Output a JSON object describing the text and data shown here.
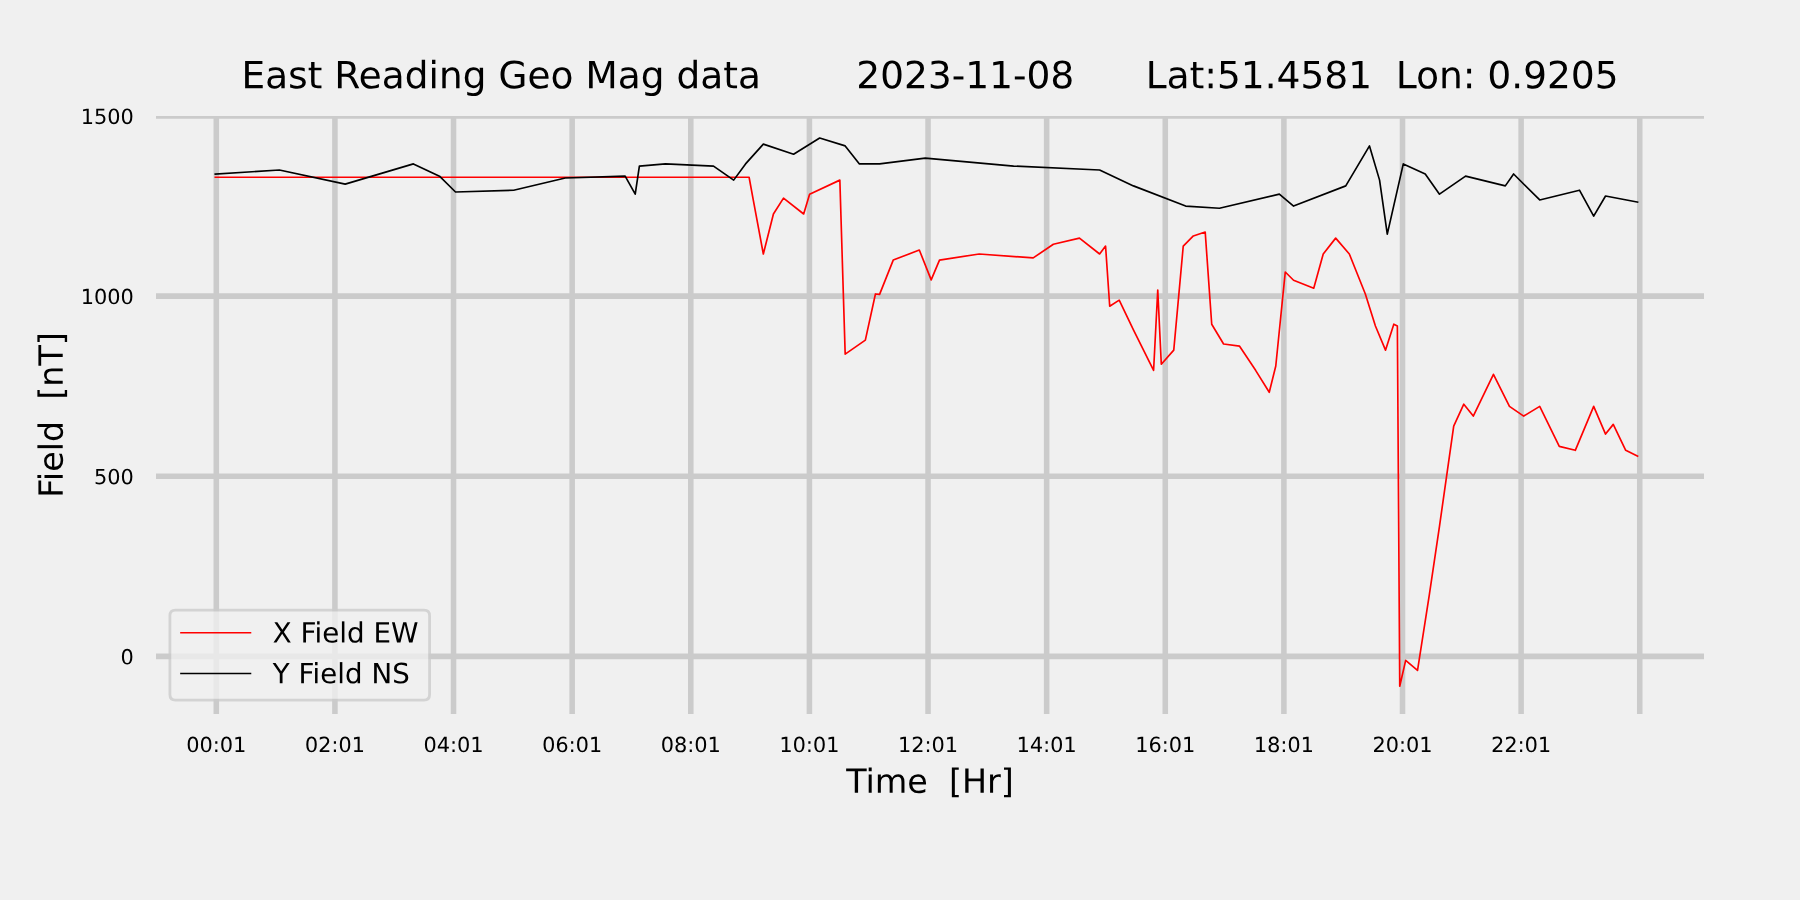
{
  "chart_data": {
    "type": "line",
    "title": "East Reading Geo Mag data        2023-11-08      Lat:51.4581  Lon: 0.9205",
    "xlabel": "Time  [Hr]",
    "ylabel": "Field  [nT]",
    "xlim": [
      -1,
      25.1
    ],
    "ylim": [
      -160,
      1500
    ],
    "xticks": [
      {
        "value": 0.0167,
        "label": "00:01"
      },
      {
        "value": 2.0167,
        "label": "02:01"
      },
      {
        "value": 4.0167,
        "label": "04:01"
      },
      {
        "value": 6.0167,
        "label": "06:01"
      },
      {
        "value": 8.0167,
        "label": "08:01"
      },
      {
        "value": 10.0167,
        "label": "10:01"
      },
      {
        "value": 12.0167,
        "label": "12:01"
      },
      {
        "value": 14.0167,
        "label": "14:01"
      },
      {
        "value": 16.0167,
        "label": "16:01"
      },
      {
        "value": 18.0167,
        "label": "18:01"
      },
      {
        "value": 20.0167,
        "label": "20:01"
      },
      {
        "value": 22.0167,
        "label": "22:01"
      },
      {
        "value": 24.0167,
        "label": null
      }
    ],
    "yticks": [
      0,
      500,
      1000,
      1500
    ],
    "grid": true,
    "legend": "bottom left",
    "marker": "none",
    "line_style": "solid",
    "series": [
      {
        "name": "X Field EW",
        "color": "#ff0000",
        "x": [
          0,
          9.0,
          9.07,
          9.24,
          9.41,
          9.58,
          9.92,
          10.02,
          10.53,
          10.62,
          10.96,
          11.13,
          11.2,
          11.43,
          11.87,
          12.07,
          12.21,
          12.88,
          13.79,
          14.13,
          14.57,
          14.91,
          15.01,
          15.08,
          15.24,
          15.48,
          15.82,
          15.89,
          15.95,
          16.16,
          16.32,
          16.49,
          16.69,
          16.8,
          17.0,
          17.27,
          17.54,
          17.77,
          17.88,
          18.04,
          18.18,
          18.52,
          18.68,
          18.89,
          19.12,
          19.39,
          19.56,
          19.73,
          19.87,
          19.93,
          19.97,
          20.07,
          20.27,
          20.47,
          20.64,
          20.88,
          21.05,
          21.21,
          21.55,
          21.82,
          22.06,
          22.33,
          22.66,
          22.93,
          23.24,
          23.44,
          23.57,
          23.78,
          23.98
        ],
        "values": [
          1330,
          1330,
          1267,
          1117,
          1228,
          1272,
          1228,
          1283,
          1322,
          839,
          878,
          1006,
          1005,
          1100,
          1128,
          1045,
          1100,
          1117,
          1106,
          1144,
          1161,
          1117,
          1139,
          972,
          989,
          906,
          794,
          1017,
          811,
          850,
          1139,
          1167,
          1178,
          922,
          867,
          861,
          794,
          733,
          806,
          1067,
          1044,
          1022,
          1117,
          1161,
          1117,
          1006,
          917,
          850,
          922,
          917,
          -83,
          -11,
          -39,
          172,
          361,
          639,
          700,
          667,
          783,
          694,
          667,
          694,
          583,
          572,
          694,
          617,
          644,
          572,
          556
        ]
      },
      {
        "name": "Y Field NS",
        "color": "#000000",
        "x": [
          0,
          1.08,
          2.19,
          3.34,
          3.78,
          4.05,
          5.03,
          5.9,
          6.91,
          7.08,
          7.15,
          7.59,
          8.4,
          8.74,
          8.94,
          9.24,
          9.75,
          10.19,
          10.62,
          10.86,
          11.2,
          11.97,
          13.46,
          14.91,
          15.48,
          16.36,
          16.93,
          17.94,
          18.18,
          19.06,
          19.46,
          19.63,
          19.76,
          20.03,
          20.4,
          20.64,
          21.08,
          21.75,
          21.89,
          22.33,
          23.0,
          23.24,
          23.44,
          23.98
        ],
        "values": [
          1339,
          1350,
          1311,
          1367,
          1333,
          1289,
          1294,
          1328,
          1333,
          1283,
          1361,
          1367,
          1361,
          1322,
          1367,
          1422,
          1394,
          1439,
          1417,
          1367,
          1367,
          1383,
          1361,
          1350,
          1306,
          1250,
          1244,
          1283,
          1250,
          1306,
          1417,
          1322,
          1172,
          1367,
          1339,
          1283,
          1333,
          1306,
          1339,
          1267,
          1294,
          1222,
          1278,
          1261
        ]
      }
    ]
  }
}
